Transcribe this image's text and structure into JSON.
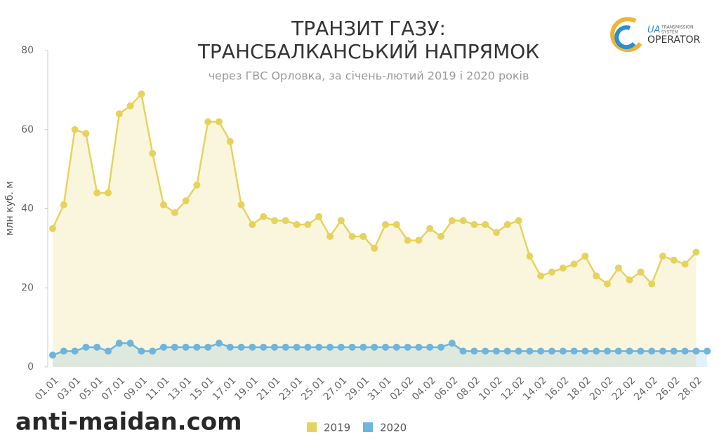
{
  "chart_data": {
    "type": "line",
    "title": [
      "ТРАНЗИТ ГАЗУ:",
      "ТРАНСБАЛКАНСЬКИЙ НАПРЯМОК"
    ],
    "subtitle": "через ГВС Орловка, за січень-лютий 2019 і 2020 років",
    "y_label": "млн куб. м",
    "categories": [
      "01.01",
      null,
      "03.01",
      null,
      "05.01",
      null,
      "07.01",
      null,
      "09.01",
      null,
      "11.01",
      null,
      "13.01",
      null,
      "15.01",
      null,
      "17.01",
      null,
      "19.01",
      null,
      "21.01",
      null,
      "23.01",
      null,
      "25.01",
      null,
      "27.01",
      null,
      "29.01",
      null,
      "31.01",
      null,
      "02.02",
      null,
      "04.02",
      null,
      "06.02",
      null,
      "08.02",
      null,
      "10.02",
      null,
      "12.02",
      null,
      "14.02",
      null,
      "16.02",
      null,
      "18.02",
      null,
      "20.02",
      null,
      "22.02",
      null,
      "24.02",
      null,
      "26.02",
      null,
      "28.02",
      null
    ],
    "series": [
      {
        "name": "2019",
        "color": "#e6d35c",
        "values": [
          35,
          41,
          60,
          59,
          44,
          44,
          64,
          66,
          69,
          54,
          41,
          39,
          42,
          46,
          62,
          62,
          57,
          41,
          36,
          38,
          37,
          37,
          36,
          36,
          38,
          33,
          37,
          33,
          33,
          30,
          36,
          36,
          32,
          32,
          35,
          33,
          37,
          37,
          36,
          36,
          34,
          36,
          37,
          28,
          23,
          24,
          25,
          26,
          28,
          23,
          21,
          25,
          22,
          24,
          21,
          28,
          27,
          26,
          29,
          null
        ]
      },
      {
        "name": "2020",
        "color": "#6db5de",
        "values": [
          3,
          4,
          4,
          5,
          5,
          4,
          6,
          6,
          4,
          4,
          5,
          5,
          5,
          5,
          5,
          6,
          5,
          5,
          5,
          5,
          5,
          5,
          5,
          5,
          5,
          5,
          5,
          5,
          5,
          5,
          5,
          5,
          5,
          5,
          5,
          5,
          6,
          4,
          4,
          4,
          4,
          4,
          4,
          4,
          4,
          4,
          4,
          4,
          4,
          4,
          4,
          4,
          4,
          4,
          4,
          4,
          4,
          4,
          4,
          4
        ]
      }
    ],
    "ylim": [
      0,
      80
    ],
    "yticks": [
      0,
      20,
      40,
      60,
      80
    ],
    "grid": false,
    "legend": "bottom"
  },
  "logo": {
    "mark": "UA",
    "small": [
      "TRANSMISSION",
      "SYSTEM"
    ],
    "name": "OPERATOR"
  },
  "watermark": "anti-maidan.com"
}
